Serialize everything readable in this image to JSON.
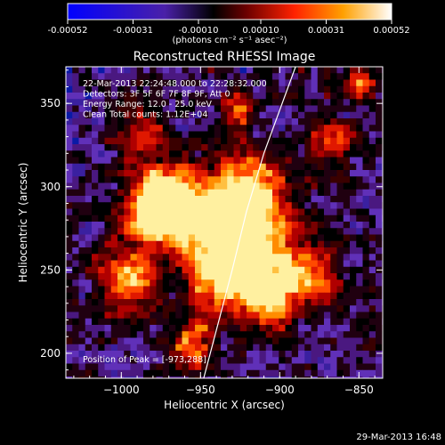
{
  "colorbar": {
    "tick_labels": [
      "-0.00052",
      "-0.00031",
      "-0.00010",
      "0.00010",
      "0.00031",
      "0.00052"
    ],
    "units_label": "(photons cm⁻² s⁻¹ asec⁻²)",
    "range": [
      -0.00052,
      0.00052
    ]
  },
  "chart_data": {
    "type": "heatmap",
    "title": "Reconstructed RHESSI Image",
    "xlabel": "Heliocentric X (arcsec)",
    "ylabel": "Heliocentric Y (arcsec)",
    "xlim": [
      -1035,
      -835
    ],
    "ylim": [
      185,
      372
    ],
    "x_ticks": [
      -1000,
      -950,
      -900,
      -850
    ],
    "y_ticks": [
      200,
      250,
      300,
      350
    ],
    "x_tick_labels": [
      "−1000",
      "−950",
      "−900",
      "−850"
    ],
    "y_tick_labels": [
      "200",
      "250",
      "300",
      "350"
    ],
    "annotations": [
      "22-Mar-2013 22:24:48.000 to 22:28:32.000",
      "Detectors: 3F 5F 6F 7F 8F 9F, Att 0",
      "Energy Range: 12.0 - 25.0 keV",
      "Clean    Total counts: 1.12E+04"
    ],
    "peak_label": "Position of Peak = [-973,288]",
    "peak": [
      -973,
      288
    ],
    "total_counts": "1.12E+04",
    "limb_curve": [
      [
        -948,
        185
      ],
      [
        -930,
        250
      ],
      [
        -921,
        285
      ],
      [
        -910,
        320
      ],
      [
        -890,
        372
      ]
    ],
    "colormap": [
      "#0000ff",
      "#5a1a9a",
      "#000000",
      "#8a0000",
      "#ff2a00",
      "#ff9800",
      "#ffff80",
      "#ffffff"
    ]
  },
  "footer": {
    "date": "29-Mar-2013 16:48"
  }
}
